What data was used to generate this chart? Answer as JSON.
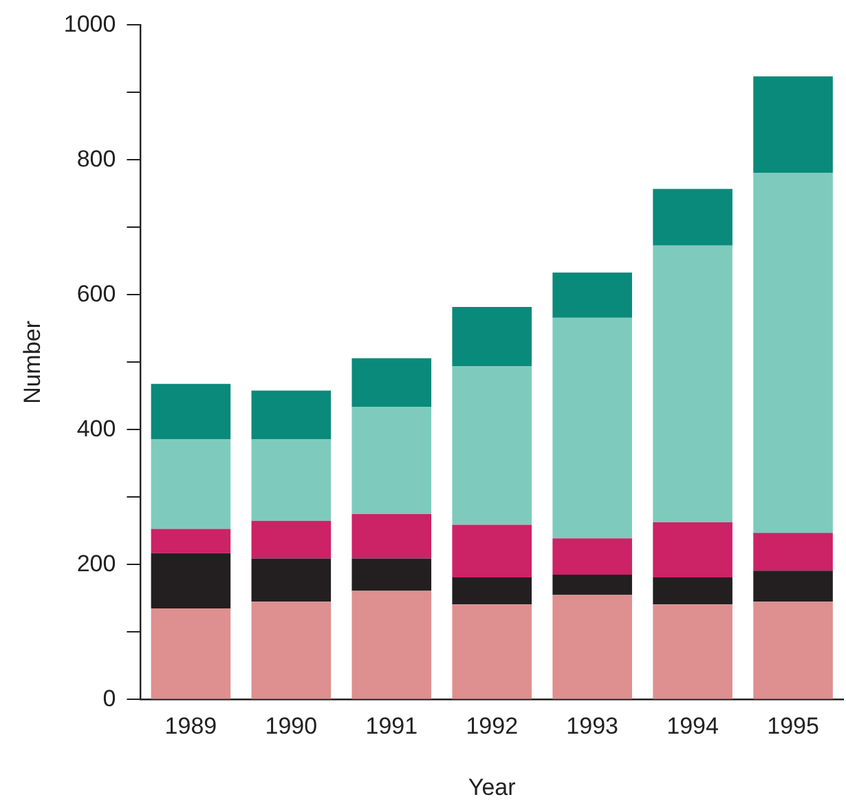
{
  "chart_data": {
    "type": "bar",
    "stacked": true,
    "xlabel": "Year",
    "ylabel": "Number",
    "categories": [
      "1989",
      "1990",
      "1991",
      "1992",
      "1993",
      "1994",
      "1995"
    ],
    "series": [
      {
        "color": "#de8f90",
        "values": [
          135,
          145,
          161,
          141,
          155,
          141,
          145
        ]
      },
      {
        "color": "#231f20",
        "values": [
          82,
          64,
          48,
          40,
          30,
          40,
          46
        ]
      },
      {
        "color": "#cc2266",
        "values": [
          36,
          56,
          66,
          78,
          54,
          82,
          56
        ]
      },
      {
        "color": "#7ecbbd",
        "values": [
          133,
          121,
          159,
          235,
          327,
          410,
          534
        ]
      },
      {
        "color": "#0a8a7a",
        "values": [
          82,
          72,
          72,
          88,
          67,
          84,
          143
        ]
      }
    ],
    "ylim": [
      0,
      1000
    ],
    "yticks": [
      0,
      {
        "value": 100,
        "label": null
      },
      200,
      {
        "value": 300,
        "label": null
      },
      400,
      {
        "value": 500,
        "label": null
      },
      600,
      {
        "value": 700,
        "label": null
      },
      800,
      {
        "value": 900,
        "label": null
      },
      1000
    ],
    "grid": false,
    "legend": false
  }
}
